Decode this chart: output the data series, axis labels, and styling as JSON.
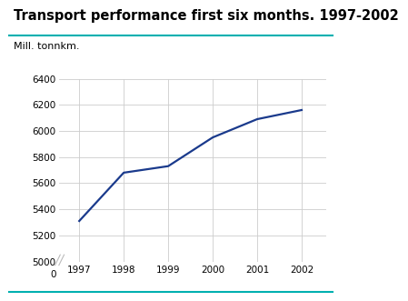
{
  "title": "Transport performance first six months. 1997-2002",
  "ylabel": "Mill. tonnkm.",
  "x": [
    1997,
    1998,
    1999,
    2000,
    2001,
    2002
  ],
  "y": [
    5310,
    5680,
    5730,
    5950,
    6090,
    6160
  ],
  "line_color": "#1a3a8c",
  "line_width": 1.6,
  "ylim_main": [
    5000,
    6400
  ],
  "yticks_main": [
    5000,
    5200,
    5400,
    5600,
    5800,
    6000,
    6200,
    6400
  ],
  "xticks": [
    1997,
    1998,
    1999,
    2000,
    2001,
    2002
  ],
  "grid_color": "#cccccc",
  "background_color": "#ffffff",
  "teal_color": "#00b0b0",
  "title_fontsize": 10.5,
  "label_fontsize": 8,
  "tick_fontsize": 7.5
}
